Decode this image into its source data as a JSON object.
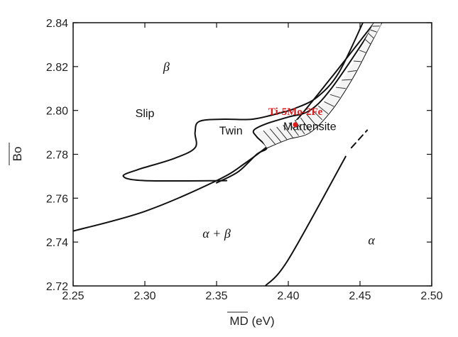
{
  "chart_data": {
    "type": "scatter",
    "title": "",
    "xlabel": "MD (eV)",
    "ylabel": "Bo",
    "xlim": [
      2.25,
      2.5
    ],
    "ylim": [
      2.72,
      2.84
    ],
    "x_ticks": [
      "2.25",
      "2.30",
      "2.35",
      "2.40",
      "2.45",
      "2.50"
    ],
    "y_ticks": [
      "2.72",
      "2.74",
      "2.76",
      "2.78",
      "2.80",
      "2.82",
      "2.84"
    ],
    "grid": false,
    "legend": "none",
    "region_labels": {
      "beta": "β",
      "slip": "Slip",
      "twin": "Twin",
      "martensite": "Martensite",
      "alpha_beta": "α + β",
      "alpha": "α"
    },
    "region_label_positions": [
      {
        "key": "beta",
        "x": 2.315,
        "y": 2.818
      },
      {
        "key": "slip",
        "x": 2.3,
        "y": 2.797
      },
      {
        "key": "twin",
        "x": 2.36,
        "y": 2.789
      },
      {
        "key": "martensite",
        "x": 2.415,
        "y": 2.791
      },
      {
        "key": "alpha_beta",
        "x": 2.35,
        "y": 2.742
      },
      {
        "key": "alpha",
        "x": 2.458,
        "y": 2.739
      }
    ],
    "point": {
      "name": "Ti-5Mo-2Fe",
      "x": 2.405,
      "y": 2.7935,
      "color": "#e0191b"
    },
    "point_label": {
      "x": 2.405,
      "y": 2.798
    },
    "boundaries": [
      {
        "name": "alpha-beta-lower",
        "points": [
          [
            2.25,
            2.745
          ],
          [
            2.3,
            2.754
          ],
          [
            2.35,
            2.768
          ],
          [
            2.37,
            2.776
          ],
          [
            2.39,
            2.786
          ],
          [
            2.405,
            2.795
          ],
          [
            2.43,
            2.815
          ],
          [
            2.46,
            2.84
          ]
        ]
      },
      {
        "name": "twin-region",
        "closed": true,
        "points": [
          [
            2.357,
            2.768
          ],
          [
            2.3,
            2.768
          ],
          [
            2.285,
            2.77
          ],
          [
            2.295,
            2.773
          ],
          [
            2.32,
            2.778
          ],
          [
            2.335,
            2.783
          ],
          [
            2.335,
            2.79
          ],
          [
            2.338,
            2.795
          ],
          [
            2.355,
            2.796
          ],
          [
            2.375,
            2.796
          ],
          [
            2.395,
            2.799
          ],
          [
            2.405,
            2.801
          ],
          [
            2.42,
            2.806
          ],
          [
            2.435,
            2.817
          ],
          [
            2.452,
            2.84
          ]
        ]
      },
      {
        "name": "twin-lower-edge",
        "points": [
          [
            2.35,
            2.767
          ],
          [
            2.365,
            2.772
          ],
          [
            2.378,
            2.78
          ],
          [
            2.385,
            2.783
          ],
          [
            2.378,
            2.788
          ],
          [
            2.376,
            2.791
          ],
          [
            2.385,
            2.794
          ],
          [
            2.4,
            2.797
          ],
          [
            2.415,
            2.8
          ],
          [
            2.43,
            2.81
          ],
          [
            2.455,
            2.834
          ],
          [
            2.46,
            2.84
          ]
        ]
      },
      {
        "name": "martensite-lower",
        "points": [
          [
            2.385,
            2.783
          ],
          [
            2.4,
            2.787
          ],
          [
            2.415,
            2.79
          ],
          [
            2.43,
            2.8
          ],
          [
            2.445,
            2.815
          ],
          [
            2.457,
            2.83
          ],
          [
            2.465,
            2.84
          ]
        ]
      },
      {
        "name": "alpha-boundary",
        "points": [
          [
            2.384,
            2.72
          ],
          [
            2.4,
            2.732
          ],
          [
            2.44,
            2.779
          ]
        ]
      },
      {
        "name": "alpha-boundary-dashed",
        "dashed": true,
        "points": [
          [
            2.444,
            2.783
          ],
          [
            2.455,
            2.791
          ]
        ]
      }
    ],
    "hatched_band": {
      "upper": [
        [
          2.378,
          2.79
        ],
        [
          2.395,
          2.793
        ],
        [
          2.41,
          2.797
        ],
        [
          2.425,
          2.804
        ],
        [
          2.44,
          2.816
        ],
        [
          2.455,
          2.834
        ],
        [
          2.46,
          2.84
        ]
      ],
      "lower": [
        [
          2.385,
          2.783
        ],
        [
          2.4,
          2.787
        ],
        [
          2.415,
          2.79
        ],
        [
          2.43,
          2.8
        ],
        [
          2.445,
          2.815
        ],
        [
          2.457,
          2.83
        ],
        [
          2.465,
          2.84
        ]
      ]
    }
  }
}
